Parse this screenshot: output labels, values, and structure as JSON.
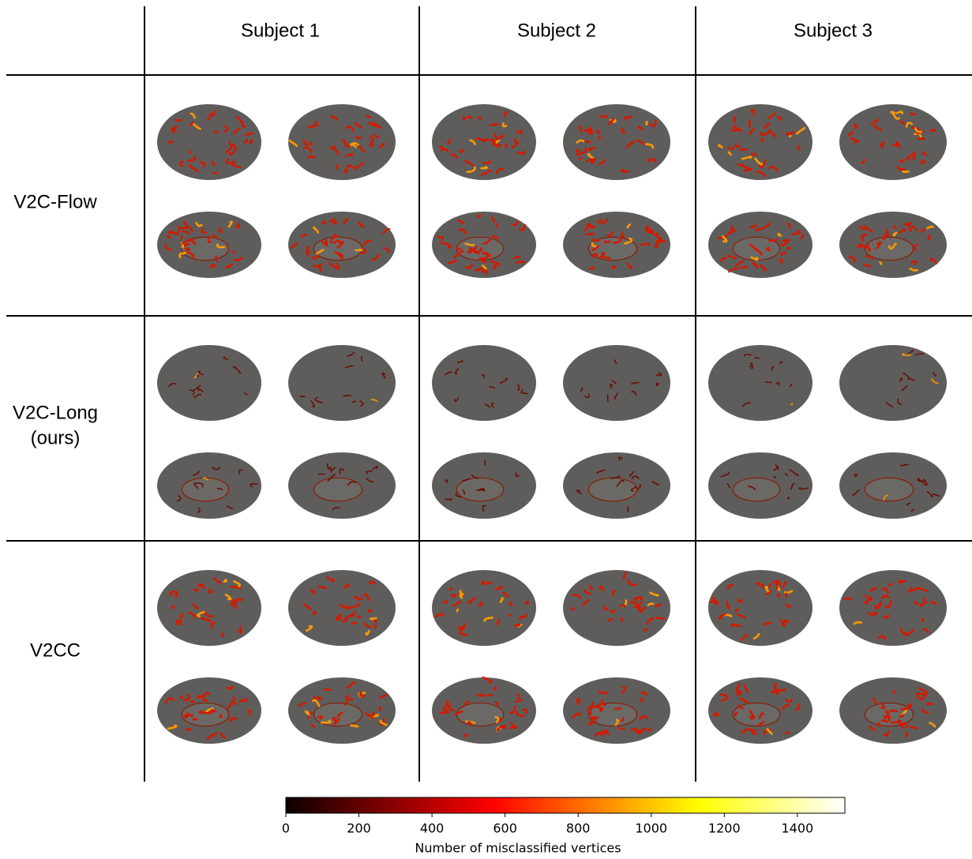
{
  "columns": [
    "Subject 1",
    "Subject 2",
    "Subject 3"
  ],
  "rows": [
    {
      "label": [
        "V2C-Flow"
      ]
    },
    {
      "label": [
        "V2C-Long",
        "(ours)"
      ]
    },
    {
      "label": [
        "V2CC"
      ]
    }
  ],
  "colorbar": {
    "label": "Number of misclassified vertices",
    "lim": [
      0,
      1530
    ],
    "ticks": [
      0,
      200,
      400,
      600,
      800,
      1000,
      1200,
      1400
    ],
    "colormap": "hot"
  }
}
